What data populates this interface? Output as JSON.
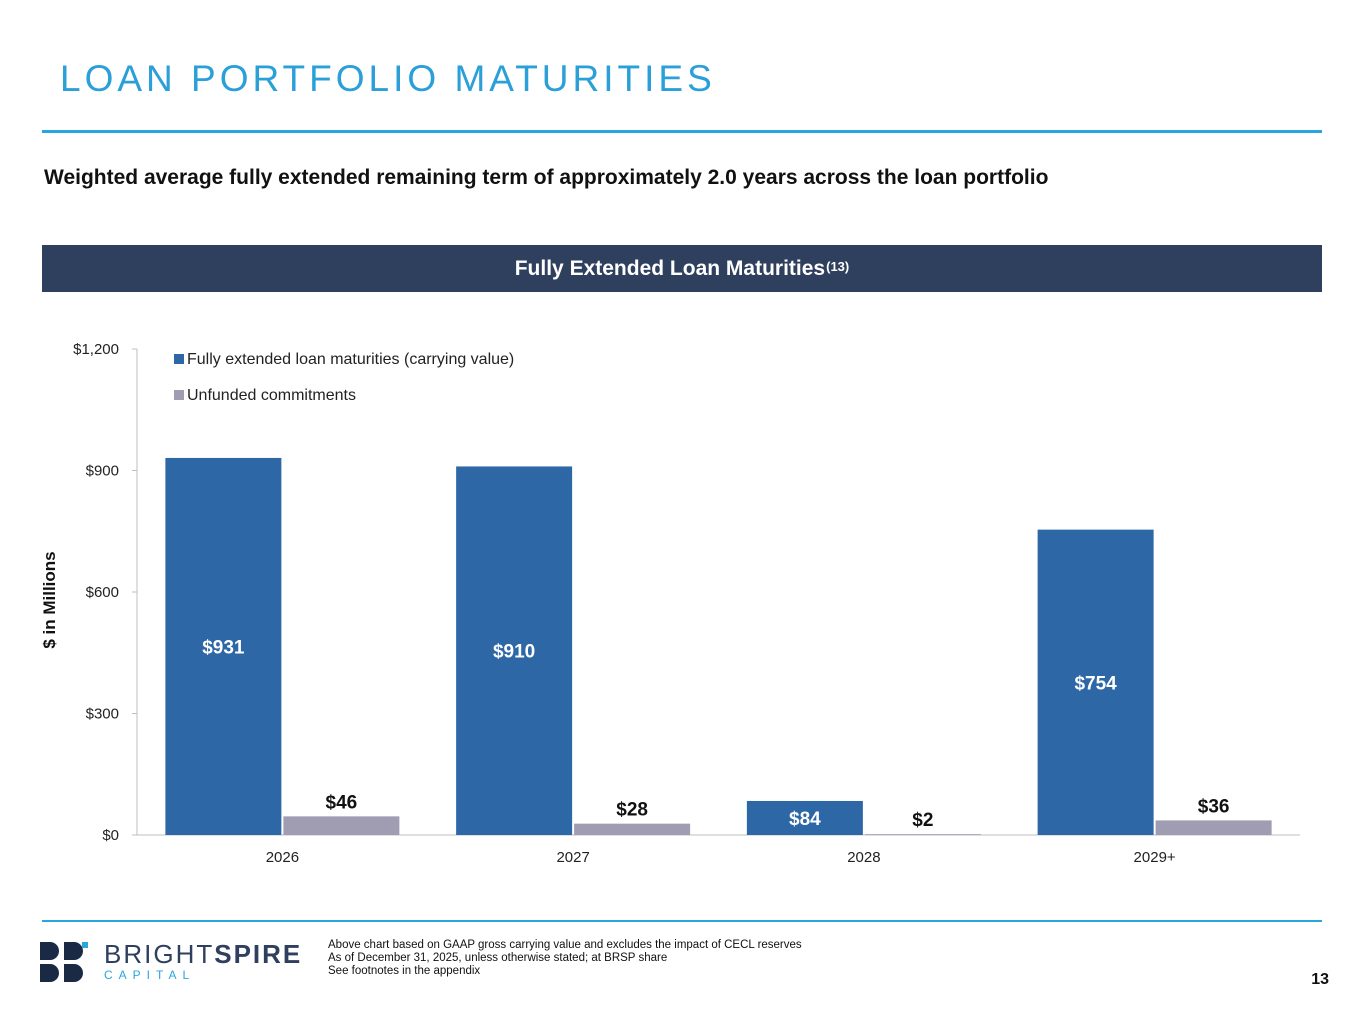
{
  "header": {
    "title": "LOAN PORTFOLIO MATURITIES",
    "subtitle": "Weighted average fully extended remaining term of approximately 2.0 years across the loan portfolio"
  },
  "banner": {
    "title": "Fully Extended Loan Maturities",
    "footnote_ref": "(13)"
  },
  "chart_data": {
    "type": "bar",
    "title": "Fully Extended Loan Maturities(13)",
    "xlabel": "",
    "ylabel": "$ in Millions",
    "categories": [
      "2026",
      "2027",
      "2028",
      "2029+"
    ],
    "series": [
      {
        "name": "Fully extended loan maturities (carrying value)",
        "color": "#2e67a6",
        "values": [
          931,
          910,
          84,
          754
        ],
        "labels": [
          "$931",
          "$910",
          "$84",
          "$754"
        ]
      },
      {
        "name": "Unfunded commitments",
        "color": "#a09cb2",
        "values": [
          46,
          28,
          2,
          36
        ],
        "labels": [
          "$46",
          "$28",
          "$2",
          "$36"
        ]
      }
    ],
    "ylim": [
      0,
      1200
    ],
    "yticks": [
      0,
      300,
      600,
      900,
      1200
    ],
    "ytick_labels": [
      "$0",
      "$300",
      "$600",
      "$900",
      "$1,200"
    ],
    "grid": false,
    "legend_position": "top-left"
  },
  "footer": {
    "brand_light": "BRIGHT",
    "brand_bold": "SPIRE",
    "brand_sub": "CAPITAL",
    "notes": [
      "Above chart based on GAAP gross carrying value and excludes the impact of CECL reserves",
      "As of December 31, 2025, unless otherwise stated; at BRSP share",
      "See footnotes in the appendix"
    ],
    "page_number": "13"
  },
  "colors": {
    "accent": "#2aa6df",
    "navy": "#2f3f5e"
  }
}
